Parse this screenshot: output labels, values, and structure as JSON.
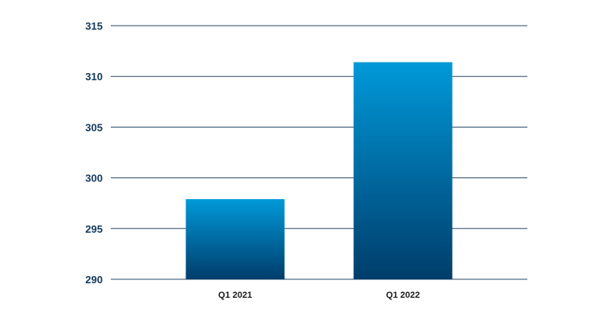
{
  "chart_data": {
    "type": "bar",
    "title": "",
    "xlabel": "",
    "ylabel": "",
    "categories": [
      "Q1 2021",
      "Q1 2022"
    ],
    "values": [
      297.9,
      311.4
    ],
    "ylim": [
      290,
      315
    ],
    "y_ticks": [
      "290",
      "295",
      "300",
      "305",
      "310",
      "315"
    ],
    "grid": true,
    "legend": "none"
  },
  "colors": {
    "bar_top": "#0099d9",
    "bar_bottom": "#003d6b",
    "gridline": "#2e4a66",
    "tick_text": "#143a5c"
  }
}
